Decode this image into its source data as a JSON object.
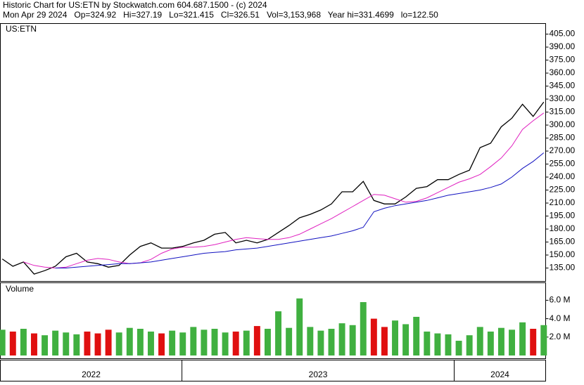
{
  "chart_data": {
    "type": "line",
    "header": [
      "Historic Chart for US:ETN by Stockwatch.com 604.687.1500 - (c) 2024",
      "Mon Apr 29 2024   Op=324.92   Hi=327.19   Lo=321.415   Cl=326.51   Vol=3,153,968   Year hi=331.4699   lo=122.50"
    ],
    "title": "US:ETN",
    "xlim": [
      2022.333,
      2024.336
    ],
    "xticks": [
      2022,
      2023,
      2024
    ],
    "x": [
      2022.34,
      2022.379,
      2022.418,
      2022.457,
      2022.496,
      2022.535,
      2022.574,
      2022.613,
      2022.652,
      2022.691,
      2022.73,
      2022.769,
      2022.808,
      2022.847,
      2022.886,
      2022.925,
      2022.964,
      2023.003,
      2023.042,
      2023.081,
      2023.12,
      2023.159,
      2023.198,
      2023.237,
      2023.276,
      2023.315,
      2023.354,
      2023.393,
      2023.432,
      2023.471,
      2023.51,
      2023.549,
      2023.588,
      2023.627,
      2023.666,
      2023.705,
      2023.744,
      2023.783,
      2023.822,
      2023.861,
      2023.9,
      2023.939,
      2023.978,
      2024.017,
      2024.056,
      2024.095,
      2024.134,
      2024.173,
      2024.212,
      2024.251,
      2024.29,
      2024.329
    ],
    "ylim": [
      119.6,
      417.2
    ],
    "yticks": [
      {
        "value": 135,
        "label": "135.00"
      },
      {
        "value": 150,
        "label": "150.00"
      },
      {
        "value": 165,
        "label": "165.00"
      },
      {
        "value": 180,
        "label": "180.00"
      },
      {
        "value": 195,
        "label": "195.00"
      },
      {
        "value": 210,
        "label": "210.00"
      },
      {
        "value": 225,
        "label": "225.00"
      },
      {
        "value": 240,
        "label": "240.00"
      },
      {
        "value": 255,
        "label": "255.00"
      },
      {
        "value": 270,
        "label": "270.00"
      },
      {
        "value": 285,
        "label": "285.00"
      },
      {
        "value": 300,
        "label": "300.00"
      },
      {
        "value": 315,
        "label": "315.00"
      },
      {
        "value": 330,
        "label": "330.00"
      },
      {
        "value": 345,
        "label": "345.00"
      },
      {
        "value": 360,
        "label": "360.00"
      },
      {
        "value": 375,
        "label": "375.00"
      },
      {
        "value": 390,
        "label": "390.00"
      },
      {
        "value": 405,
        "label": "405.00"
      }
    ],
    "series": [
      {
        "color": "#000000",
        "values": [
          145.5,
          137,
          142,
          128,
          132,
          137,
          148,
          152,
          142,
          140,
          136,
          138,
          150,
          160,
          164,
          158,
          158,
          160,
          164,
          167,
          174,
          176,
          164,
          167,
          164,
          168,
          176,
          184,
          193,
          197,
          202,
          209,
          223,
          223,
          235,
          213,
          209,
          209,
          217,
          227,
          229,
          237,
          237,
          243,
          248,
          274,
          279,
          298,
          308,
          324,
          310,
          326.51
        ]
      },
      {
        "color": "#e020c0",
        "values": [
          null,
          null,
          142,
          138,
          136,
          135,
          136,
          140,
          144,
          146,
          145,
          142,
          140,
          141,
          145,
          152,
          157,
          159,
          159,
          160,
          162,
          165,
          168,
          170,
          169,
          168,
          168,
          170,
          174,
          180,
          186,
          192,
          199,
          206,
          213,
          220,
          219,
          215,
          211,
          212,
          216,
          222,
          228,
          234,
          238,
          243,
          252,
          262,
          276,
          295,
          305,
          314
        ]
      },
      {
        "color": "#1010c0",
        "values": [
          null,
          null,
          null,
          null,
          null,
          135,
          135,
          136,
          137,
          138,
          139,
          140,
          140,
          141,
          142,
          144,
          146,
          148,
          150,
          152,
          153,
          154,
          156,
          157,
          158,
          160,
          162,
          164,
          166,
          168,
          170,
          172,
          175,
          178,
          182,
          200,
          204,
          207,
          209,
          211,
          213,
          216,
          219,
          221,
          223,
          225,
          228,
          232,
          240,
          250,
          258,
          268
        ]
      }
    ],
    "volume": {
      "title": "Volume",
      "ylim": [
        0,
        7.9
      ],
      "yticks": [
        {
          "value": 2,
          "label": "2.0 M"
        },
        {
          "value": 4,
          "label": "4.0 M"
        },
        {
          "value": 6,
          "label": "6.0 M"
        }
      ],
      "up_color": "#40b040",
      "down_color": "#e01010",
      "values": [
        2.8,
        2.6,
        2.9,
        2.4,
        2.2,
        2.7,
        2.5,
        2.3,
        2.6,
        2.4,
        2.8,
        2.5,
        3.0,
        2.9,
        2.6,
        2.4,
        2.7,
        2.5,
        3.1,
        2.8,
        2.9,
        2.5,
        2.6,
        2.7,
        3.2,
        2.9,
        4.8,
        3.0,
        6.2,
        3.1,
        2.7,
        2.9,
        3.5,
        3.3,
        5.8,
        4.0,
        3.1,
        3.8,
        3.4,
        4.2,
        2.6,
        2.4,
        2.3,
        1.6,
        2.2,
        3.1,
        2.6,
        3.0,
        2.8,
        3.6,
        2.9,
        3.3
      ]
    }
  }
}
